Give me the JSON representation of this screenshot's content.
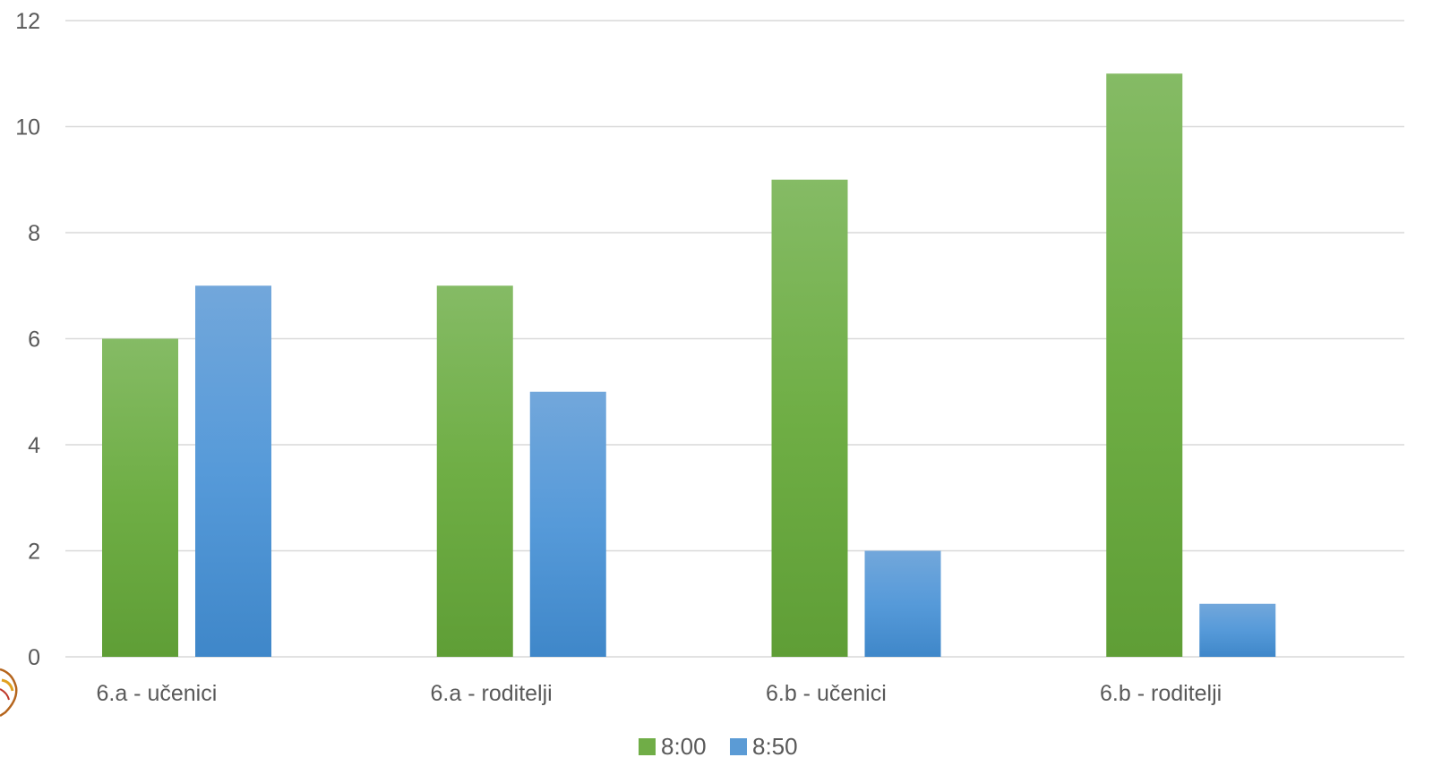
{
  "chart_data": {
    "type": "bar",
    "categories": [
      "6.a - učenici",
      "6.a - roditelji",
      "6.b - učenici",
      "6.b - roditelji"
    ],
    "series": [
      {
        "name": "8:00",
        "values": [
          6,
          7,
          9,
          11
        ],
        "color": "#70ad47"
      },
      {
        "name": "8:50",
        "values": [
          7,
          5,
          2,
          1
        ],
        "color": "#5b9bd5"
      }
    ],
    "y_ticks": [
      "0",
      "2",
      "4",
      "6",
      "8",
      "10",
      "12"
    ],
    "ylim": [
      0,
      12
    ],
    "grid": true,
    "legend_position": "bottom"
  }
}
